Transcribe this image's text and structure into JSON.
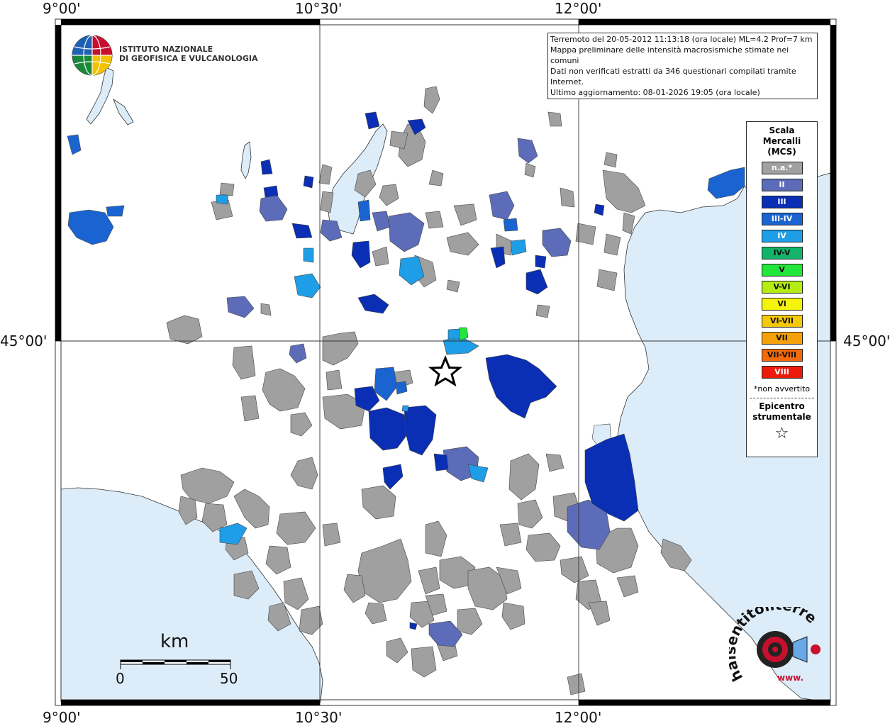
{
  "coords": {
    "top": [
      "9°00'",
      "10°30'",
      "12°00'"
    ],
    "bottom": [
      "9°00'",
      "10°30'",
      "12°00'"
    ],
    "left": "45°00'",
    "right": "45°00'"
  },
  "info": {
    "lines": [
      "Terremoto del 20-05-2012 11:13:18 (ora locale) ML=4.2 Prof=7 km",
      "Mappa preliminare delle intensità macrosismiche stimate nei comuni",
      "Dati non verificati estratti da 346 questionari compilati tramite Internet.",
      "Ultimo aggiornamento: 08-01-2026 19:05 (ora locale)"
    ]
  },
  "ingv": {
    "line1": "ISTITUTO NAZIONALE",
    "line2": "DI GEOFISICA E VULCANOLOGIA"
  },
  "legend": {
    "title": [
      "Scala",
      "Mercalli",
      "(MCS)"
    ],
    "items": [
      {
        "label": "n.a.*",
        "color": "#a0a0a0",
        "text_color": "#ffffff"
      },
      {
        "label": "II",
        "color": "#5c6cb8",
        "text_color": "#ffffff"
      },
      {
        "label": "III",
        "color": "#0a2eb4",
        "text_color": "#ffffff"
      },
      {
        "label": "III-IV",
        "color": "#1a64d2",
        "text_color": "#ffffff"
      },
      {
        "label": "IV",
        "color": "#1e9ee6",
        "text_color": "#ffffff"
      },
      {
        "label": "IV-V",
        "color": "#12b46a",
        "text_color": "#111111"
      },
      {
        "label": "V",
        "color": "#22e63a",
        "text_color": "#111111"
      },
      {
        "label": "V-VI",
        "color": "#b4ec14",
        "text_color": "#111111"
      },
      {
        "label": "VI",
        "color": "#f6f40a",
        "text_color": "#111111"
      },
      {
        "label": "VI-VII",
        "color": "#f6c80a",
        "text_color": "#111111"
      },
      {
        "label": "VII",
        "color": "#f6a00a",
        "text_color": "#111111"
      },
      {
        "label": "VII-VIII",
        "color": "#f46a0a",
        "text_color": "#111111"
      },
      {
        "label": "VIII",
        "color": "#ec1a0a",
        "text_color": "#ffffff"
      }
    ],
    "note": "*non avvertito",
    "epicenter_title": [
      "Epicentro",
      "strumentale"
    ],
    "epicenter_symbol": "☆"
  },
  "scalebar": {
    "unit": "km",
    "start": "0",
    "end": "50"
  },
  "haisentito": {
    "text": "haisentitoilterremoto.it",
    "url": "www."
  },
  "colors": {
    "sea": "#dcedf9",
    "na": "#a0a0a0",
    "II": "#5c6cb8",
    "III": "#0a2eb4",
    "III_IV": "#1a64d2",
    "IV": "#1e9ee6",
    "V": "#22e63a"
  }
}
